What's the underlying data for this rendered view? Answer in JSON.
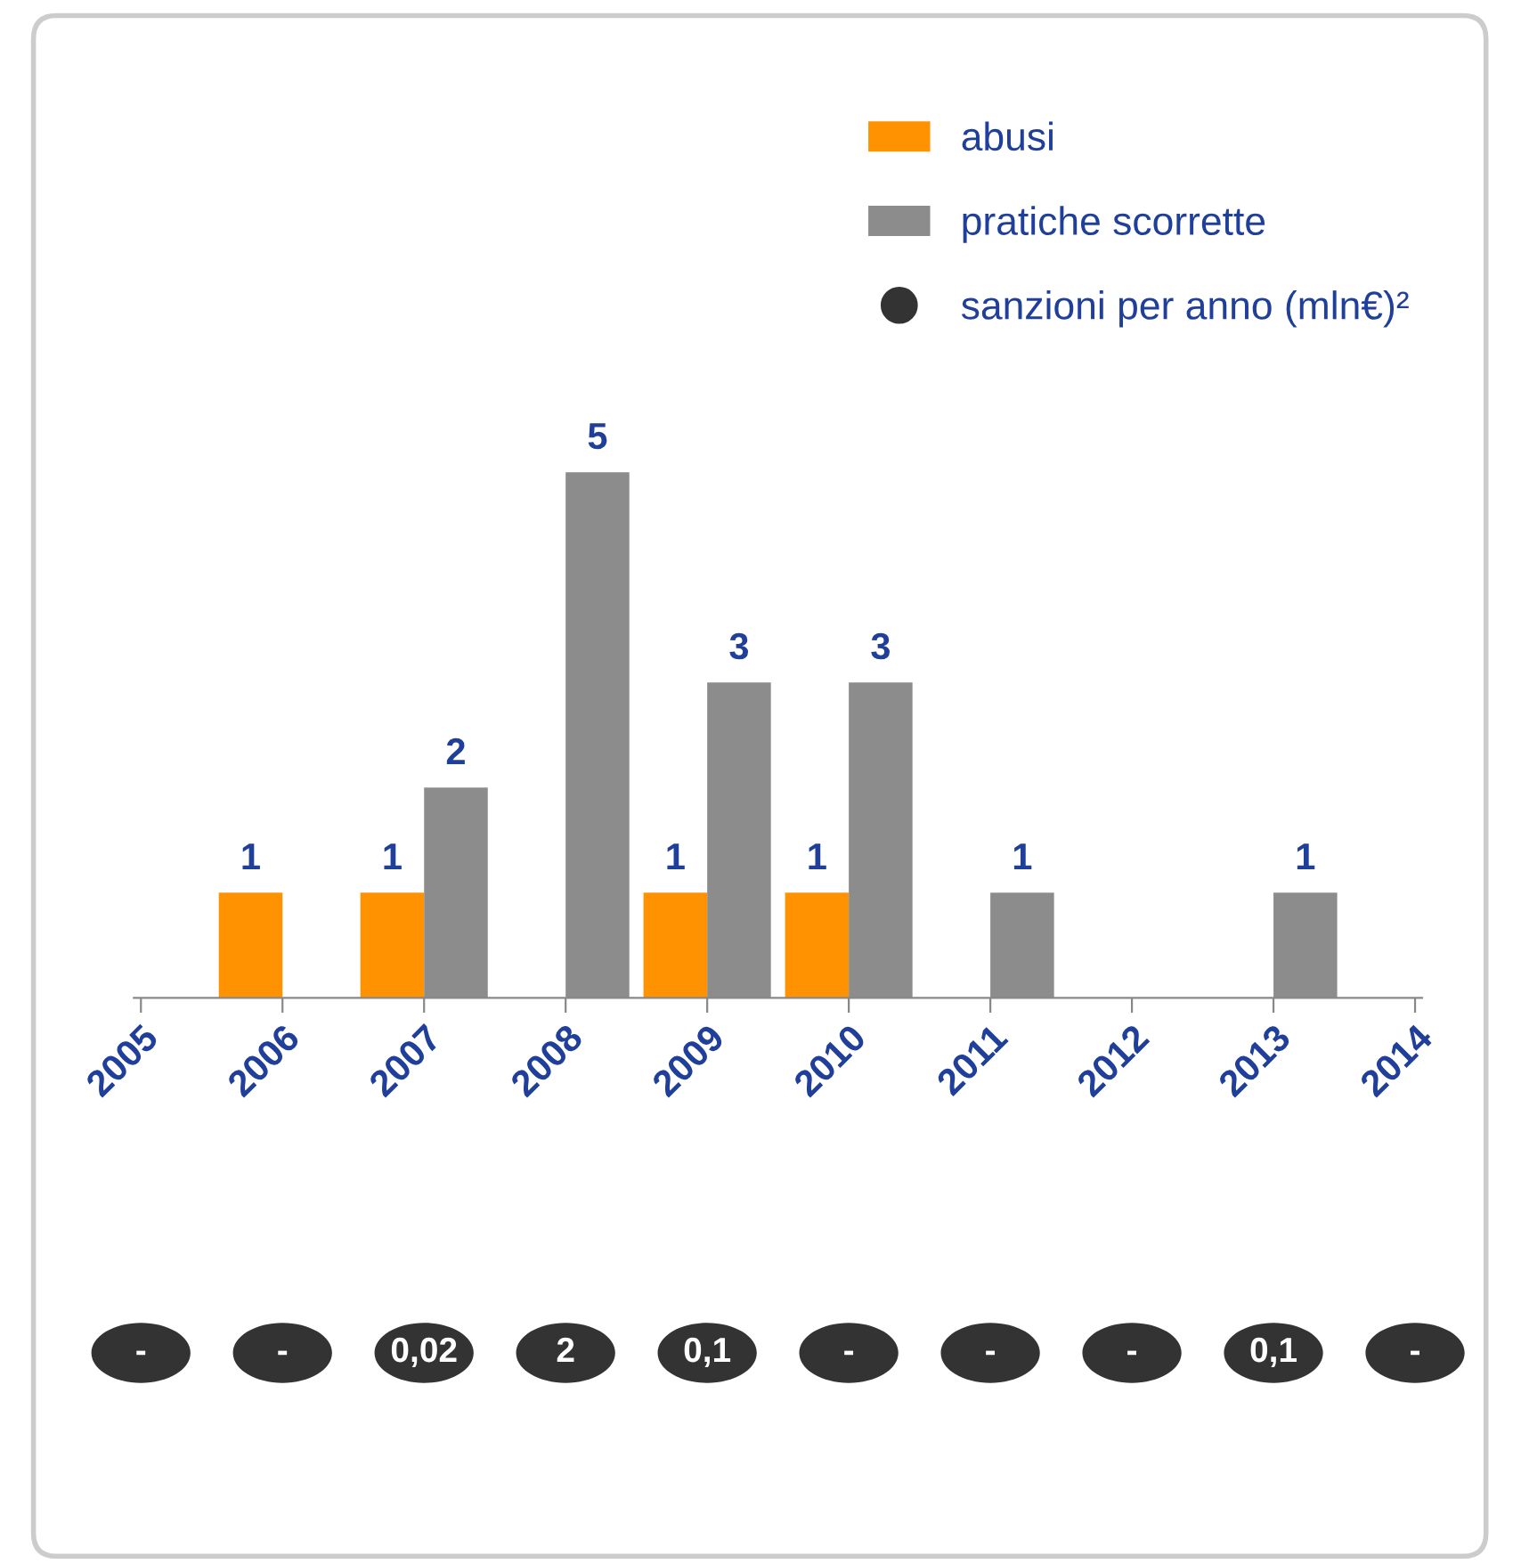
{
  "chart_data": [
    {
      "type": "bar",
      "categories": [
        "2005",
        "2006",
        "2007",
        "2008",
        "2009",
        "2010",
        "2011",
        "2012",
        "2013",
        "2014"
      ],
      "series": [
        {
          "name": "abusi",
          "color": "#ff9200",
          "values": [
            null,
            1,
            1,
            null,
            1,
            1,
            null,
            null,
            null,
            null
          ]
        },
        {
          "name": "pratiche scorrette",
          "color": "#8c8c8c",
          "values": [
            null,
            null,
            2,
            5,
            3,
            3,
            1,
            null,
            1,
            null
          ]
        }
      ],
      "data_labels": true,
      "legend": "top right",
      "tick_labels": "x"
    },
    {
      "type": "other",
      "categories": [
        null,
        null,
        null,
        null,
        null,
        null,
        null,
        null,
        null,
        null
      ],
      "series": [
        {
          "name": "sanzioni per anno (mln€)²",
          "color": "#333333",
          "values": [
            null,
            null,
            0.02,
            2,
            0.1,
            null,
            null,
            null,
            0.1,
            null
          ],
          "value_labels": [
            "-",
            "-",
            "0,02",
            "2",
            "0,1",
            "-",
            "-",
            "-",
            "0,1",
            "-"
          ]
        }
      ],
      "legend": "top right"
    }
  ]
}
